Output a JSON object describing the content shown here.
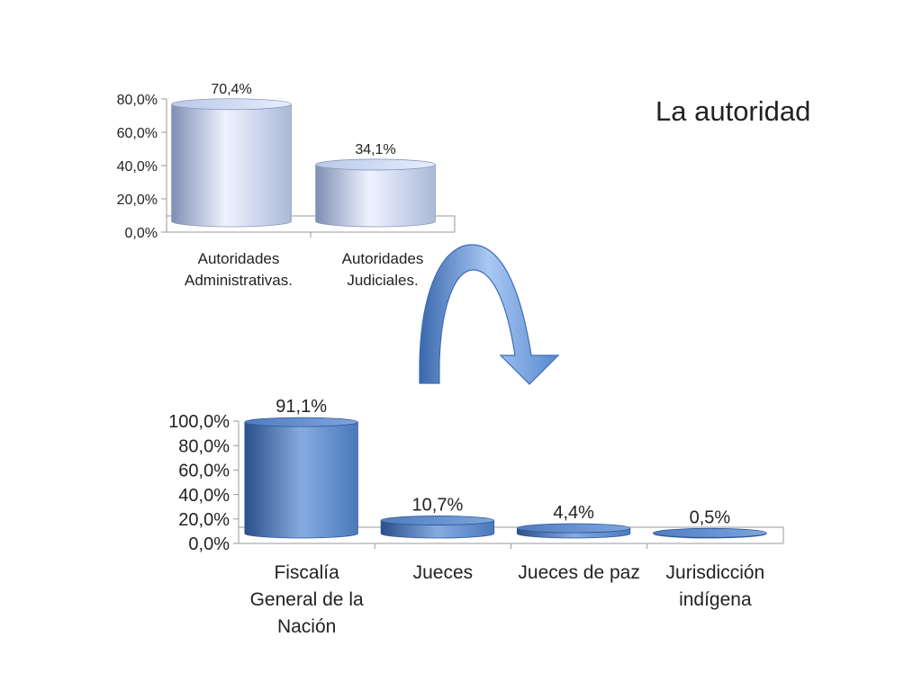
{
  "title": "La autoridad",
  "colors": {
    "top_light": "#eef3ff",
    "top_dark": "#7f8fb3",
    "bottom_light": "#7aa2dc",
    "bottom_dark": "#2b5492",
    "arrow_light": "#9ec0f0",
    "arrow_dark": "#3e6fb6",
    "axis": "#9a9a9a"
  },
  "chart_data": [
    {
      "type": "bar",
      "style": "3d-cylinder",
      "categories": [
        [
          "Autoridades",
          "Administrativas."
        ],
        [
          "Autoridades",
          "Judiciales."
        ]
      ],
      "values": [
        70.4,
        34.1
      ],
      "value_labels": [
        "70,4%",
        "34,1%"
      ],
      "ylim": [
        0,
        80
      ],
      "ticks": [
        0,
        20,
        40,
        60,
        80
      ],
      "tick_labels": [
        "0,0%",
        "20,0%",
        "40,0%",
        "60,0%",
        "80,0%"
      ],
      "grid": false,
      "legend": false
    },
    {
      "type": "bar",
      "style": "3d-cylinder",
      "categories": [
        [
          "Fiscalía",
          "General de la",
          "Nación"
        ],
        [
          "Jueces"
        ],
        [
          "Jueces de paz"
        ],
        [
          "Jurisdicción",
          "indígena"
        ]
      ],
      "values": [
        91.1,
        10.7,
        4.4,
        0.5
      ],
      "value_labels": [
        "91,1%",
        "10,7%",
        "4,4%",
        "0,5%"
      ],
      "ylim": [
        0,
        100
      ],
      "ticks": [
        0,
        20,
        40,
        60,
        80,
        100
      ],
      "tick_labels": [
        "0,0%",
        "20,0%",
        "40,0%",
        "60,0%",
        "80,0%",
        "100,0%"
      ],
      "grid": false,
      "legend": false
    }
  ]
}
